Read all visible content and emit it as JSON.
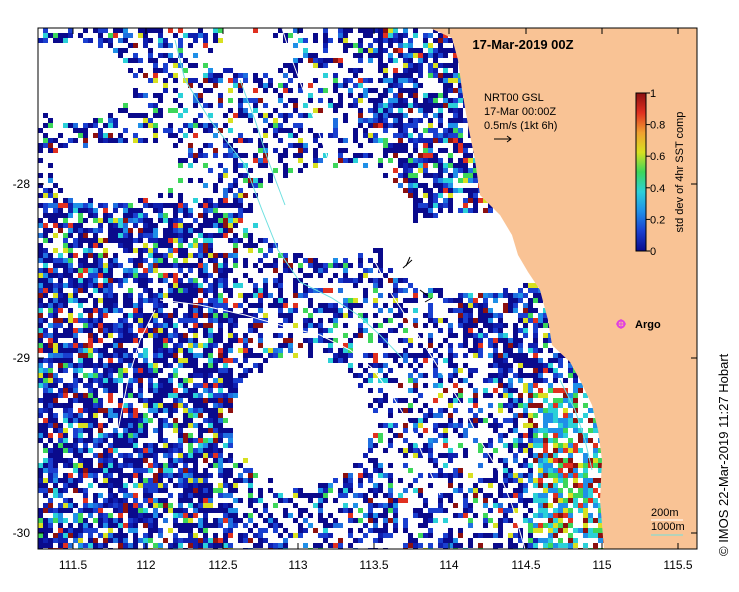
{
  "title": "17-Mar-2019 00Z",
  "info_box": {
    "line1": "NRT00 GSL",
    "line2": "17-Mar 00:00Z",
    "line3": "0.5m/s (1kt 6h)"
  },
  "colorbar": {
    "label": "std dev of 4hr SST comp",
    "ticks": [
      "0",
      "0.2",
      "0.4",
      "0.6",
      "0.8",
      "1"
    ],
    "stops": [
      "#0a0a8c",
      "#1a3fd0",
      "#1f8fe8",
      "#2bd0d8",
      "#3dd65a",
      "#d8e020",
      "#f0a030",
      "#e03020",
      "#8c1010"
    ]
  },
  "argo_label": "Argo",
  "depth_legend": {
    "line1": "200m",
    "line2": "1000m"
  },
  "x_ticks": [
    "111.5",
    "112",
    "112.5",
    "113",
    "113.5",
    "114",
    "114.5",
    "115",
    "115.5"
  ],
  "y_ticks": [
    "-28",
    "-29",
    "-30"
  ],
  "credit": "© IMOS 22-Mar-2019 11:27 Hobart",
  "colors": {
    "land": "#f9c395",
    "ocean_nodata": "#ffffff",
    "argo": "#e040e0",
    "contour_200": "#ffffff",
    "contour_1000": "#6fe0e0"
  }
}
